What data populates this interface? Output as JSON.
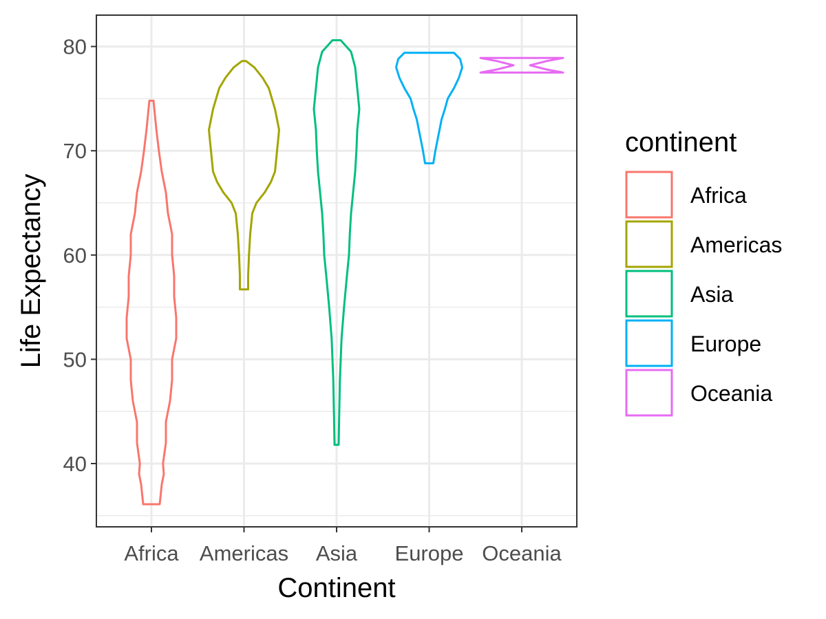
{
  "chart_data": {
    "type": "violin",
    "xlabel": "Continent",
    "ylabel": "Life Expectancy",
    "categories": [
      "Africa",
      "Americas",
      "Asia",
      "Europe",
      "Oceania"
    ],
    "y_ticks": [
      40,
      50,
      60,
      70,
      80
    ],
    "ylim": [
      34,
      83
    ],
    "grid": true,
    "legend": {
      "title": "continent",
      "placement": "right",
      "entries": [
        "Africa",
        "Americas",
        "Asia",
        "Europe",
        "Oceania"
      ]
    },
    "series": [
      {
        "category": "Africa",
        "color": "#F8766D",
        "min": 36.1,
        "max": 74.8,
        "profile": [
          [
            36.1,
            0.2
          ],
          [
            38,
            0.25
          ],
          [
            39,
            0.3
          ],
          [
            40,
            0.28
          ],
          [
            42,
            0.35
          ],
          [
            44,
            0.35
          ],
          [
            46,
            0.45
          ],
          [
            48,
            0.5
          ],
          [
            50,
            0.5
          ],
          [
            52,
            0.6
          ],
          [
            54,
            0.6
          ],
          [
            56,
            0.55
          ],
          [
            58,
            0.55
          ],
          [
            60,
            0.5
          ],
          [
            62,
            0.5
          ],
          [
            64,
            0.4
          ],
          [
            66,
            0.35
          ],
          [
            68,
            0.25
          ],
          [
            70,
            0.18
          ],
          [
            72,
            0.12
          ],
          [
            74.8,
            0.05
          ]
        ]
      },
      {
        "category": "Americas",
        "color": "#A3A500",
        "min": 56.7,
        "max": 78.6,
        "profile": [
          [
            56.7,
            0.1
          ],
          [
            58,
            0.1
          ],
          [
            60,
            0.12
          ],
          [
            62,
            0.15
          ],
          [
            64,
            0.2
          ],
          [
            65,
            0.3
          ],
          [
            66,
            0.5
          ],
          [
            67,
            0.65
          ],
          [
            68,
            0.75
          ],
          [
            70,
            0.8
          ],
          [
            72,
            0.85
          ],
          [
            74,
            0.75
          ],
          [
            76,
            0.6
          ],
          [
            77,
            0.45
          ],
          [
            78,
            0.25
          ],
          [
            78.6,
            0.05
          ]
        ]
      },
      {
        "category": "Asia",
        "color": "#00BF7D",
        "min": 41.8,
        "max": 80.6,
        "profile": [
          [
            41.8,
            0.05
          ],
          [
            44,
            0.06
          ],
          [
            48,
            0.08
          ],
          [
            52,
            0.12
          ],
          [
            55,
            0.18
          ],
          [
            58,
            0.25
          ],
          [
            60,
            0.3
          ],
          [
            62,
            0.32
          ],
          [
            64,
            0.35
          ],
          [
            66,
            0.4
          ],
          [
            68,
            0.45
          ],
          [
            70,
            0.48
          ],
          [
            72,
            0.5
          ],
          [
            74,
            0.55
          ],
          [
            76,
            0.5
          ],
          [
            78,
            0.45
          ],
          [
            79.5,
            0.35
          ],
          [
            80.6,
            0.1
          ]
        ]
      },
      {
        "category": "Europe",
        "color": "#00B0F6",
        "min": 68.8,
        "max": 79.4,
        "profile": [
          [
            68.8,
            0.1
          ],
          [
            70,
            0.15
          ],
          [
            71,
            0.2
          ],
          [
            72,
            0.25
          ],
          [
            73,
            0.3
          ],
          [
            74,
            0.38
          ],
          [
            75,
            0.45
          ],
          [
            76,
            0.6
          ],
          [
            77,
            0.72
          ],
          [
            78,
            0.8
          ],
          [
            78.8,
            0.75
          ],
          [
            79.4,
            0.6
          ]
        ]
      },
      {
        "category": "Oceania",
        "color": "#E76BF3",
        "min": 77.5,
        "max": 78.9,
        "profile": [
          [
            77.5,
            1.0
          ],
          [
            77.8,
            0.6
          ],
          [
            78.2,
            0.2
          ],
          [
            78.6,
            0.6
          ],
          [
            78.9,
            1.0
          ]
        ]
      }
    ]
  }
}
